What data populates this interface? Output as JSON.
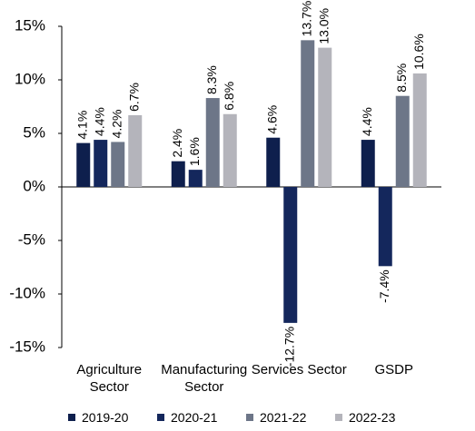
{
  "chart_data": {
    "type": "bar",
    "categories": [
      "Agriculture Sector",
      "Manufacturing Sector",
      "Services Sector",
      "GSDP"
    ],
    "series": [
      {
        "name": "2019-20",
        "color": "#0e1f4d",
        "values": [
          4.1,
          2.4,
          4.6,
          4.4
        ],
        "value_labels": [
          "4.1%",
          "2.4%",
          "4.6%",
          "4.4%"
        ]
      },
      {
        "name": "2020-21",
        "color": "#14275c",
        "values": [
          4.4,
          1.6,
          -12.7,
          -7.4
        ],
        "value_labels": [
          "4.4%",
          "1.6%",
          "-12.7%",
          "-7.4%"
        ]
      },
      {
        "name": "2021-22",
        "color": "#6d7688",
        "values": [
          4.2,
          8.3,
          13.7,
          8.5
        ],
        "value_labels": [
          "4.2%",
          "8.3%",
          "13.7%",
          "8.5%"
        ]
      },
      {
        "name": "2022-23",
        "color": "#b4b4bb",
        "values": [
          6.7,
          6.8,
          13.0,
          10.6
        ],
        "value_labels": [
          "6.7%",
          "6.8%",
          "13.0%",
          "10.6%"
        ]
      }
    ],
    "ylim": [
      -15,
      15
    ],
    "yticks": [
      {
        "value": -15,
        "label": "-15%"
      },
      {
        "value": -10,
        "label": "-10%"
      },
      {
        "value": -5,
        "label": "-5%"
      },
      {
        "value": 0,
        "label": "0%"
      },
      {
        "value": 5,
        "label": "5%"
      },
      {
        "value": 10,
        "label": "10%"
      },
      {
        "value": 15,
        "label": "15%"
      }
    ],
    "grid": false
  }
}
